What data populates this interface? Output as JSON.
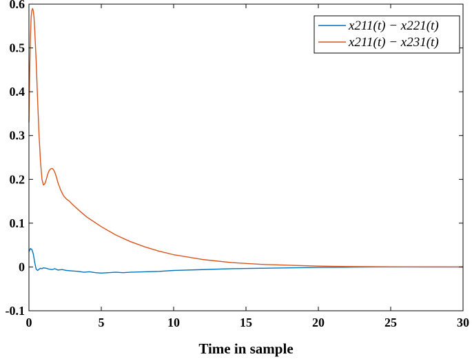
{
  "chart_data": {
    "type": "line",
    "title": "",
    "xlabel": "Time in sample",
    "ylabel": "",
    "xlim": [
      0,
      30
    ],
    "ylim": [
      -0.1,
      0.6
    ],
    "xticks": [
      0,
      5,
      10,
      15,
      20,
      25,
      30
    ],
    "xtick_labels": [
      "0",
      "5",
      "10",
      "15",
      "20",
      "25",
      "30"
    ],
    "yticks": [
      -0.1,
      0,
      0.1,
      0.2,
      0.3,
      0.4,
      0.5,
      0.6
    ],
    "ytick_labels": [
      "-0.1",
      "0",
      "0.1",
      "0.2",
      "0.3",
      "0.4",
      "0.5",
      "0.6"
    ],
    "grid": false,
    "legend_position": "top-right",
    "series": [
      {
        "name": "x211(t) − x221(t)",
        "color": "#0072BD",
        "x": [
          0,
          0.1,
          0.2,
          0.3,
          0.4,
          0.5,
          0.6,
          0.7,
          0.8,
          0.9,
          1.0,
          1.2,
          1.4,
          1.6,
          1.8,
          2.0,
          2.3,
          2.6,
          3.0,
          3.4,
          3.8,
          4.2,
          4.6,
          5.0,
          5.5,
          6.0,
          6.5,
          7.0,
          8.0,
          9.0,
          10.0,
          12.0,
          14.0,
          16.0,
          18.0,
          20.0,
          22.0,
          24.0,
          26.0,
          28.0,
          30.0
        ],
        "y": [
          0.035,
          0.042,
          0.04,
          0.03,
          0.01,
          -0.005,
          -0.008,
          -0.005,
          -0.003,
          -0.004,
          -0.002,
          -0.003,
          -0.005,
          -0.006,
          -0.004,
          -0.007,
          -0.006,
          -0.008,
          -0.009,
          -0.01,
          -0.012,
          -0.011,
          -0.013,
          -0.014,
          -0.013,
          -0.012,
          -0.013,
          -0.012,
          -0.011,
          -0.01,
          -0.008,
          -0.006,
          -0.004,
          -0.003,
          -0.002,
          -0.001,
          -0.0005,
          0.0,
          0.0,
          0.0,
          0.0
        ]
      },
      {
        "name": "x211(t) − x231(t)",
        "color": "#D95319",
        "x": [
          0,
          0.05,
          0.1,
          0.15,
          0.2,
          0.25,
          0.3,
          0.35,
          0.4,
          0.5,
          0.6,
          0.7,
          0.8,
          0.9,
          1.0,
          1.1,
          1.2,
          1.3,
          1.4,
          1.5,
          1.6,
          1.7,
          1.8,
          1.9,
          2.0,
          2.2,
          2.4,
          2.6,
          2.8,
          3.0,
          3.5,
          4.0,
          5.0,
          6.0,
          7.0,
          8.0,
          9.0,
          10.0,
          12.0,
          14.0,
          16.0,
          18.0,
          20.0,
          22.0,
          24.0,
          26.0,
          28.0,
          30.0
        ],
        "y": [
          0.33,
          0.44,
          0.52,
          0.57,
          0.585,
          0.59,
          0.585,
          0.57,
          0.54,
          0.47,
          0.38,
          0.3,
          0.24,
          0.2,
          0.187,
          0.19,
          0.2,
          0.212,
          0.22,
          0.224,
          0.225,
          0.222,
          0.215,
          0.205,
          0.193,
          0.175,
          0.162,
          0.155,
          0.15,
          0.143,
          0.128,
          0.114,
          0.092,
          0.073,
          0.058,
          0.046,
          0.036,
          0.028,
          0.017,
          0.01,
          0.006,
          0.004,
          0.002,
          0.001,
          0.0005,
          0.0002,
          0.0001,
          0.0
        ]
      }
    ]
  }
}
